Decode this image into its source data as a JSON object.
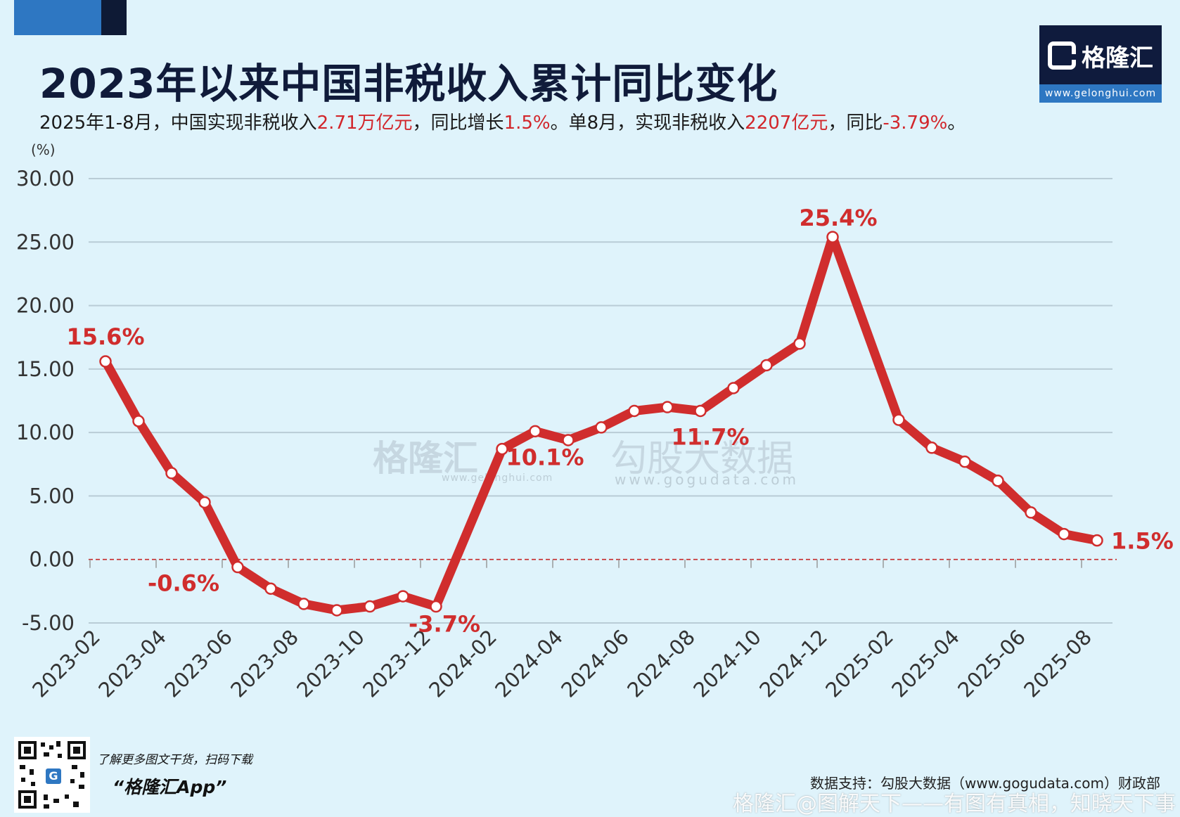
{
  "title": "2023年以来中国非税收入累计同比变化",
  "subtitle_parts": [
    {
      "text": "2025年1-8月，中国实现非税收入",
      "hl": false
    },
    {
      "text": "2.71万亿元",
      "hl": true
    },
    {
      "text": "，同比增长",
      "hl": false
    },
    {
      "text": "1.5%",
      "hl": true
    },
    {
      "text": "。单8月，实现非税收入",
      "hl": false
    },
    {
      "text": "2207亿元",
      "hl": true
    },
    {
      "text": "，同比",
      "hl": false
    },
    {
      "text": "-3.79%",
      "hl": true
    },
    {
      "text": "。",
      "hl": false
    }
  ],
  "logo": {
    "text": "格隆汇",
    "url": "www.gelonghui.com"
  },
  "promo": {
    "line1": "了解更多图文干货，扫码下载",
    "line2": "“格隆汇App”",
    "badge": "G"
  },
  "source_note": "数据支持：勾股大数据（www.gogudata.com）财政部",
  "footer_watermark": "格隆汇@图解天下——有图有真相，知晓天下事",
  "watermarks": {
    "left": "格隆汇",
    "left_url": "www.gelonghui.com",
    "right": "勾股大数据",
    "right_url": "www.gogudata.com"
  },
  "colors": {
    "line": "#d02d2d",
    "label": "#d02d2d",
    "grid": "#b9ccd6",
    "zero_line": "#c62828",
    "title": "#101b3a"
  },
  "chart_data": {
    "type": "line",
    "ylabel": "(%)",
    "ylim": [
      -5,
      30
    ],
    "yticks": [
      "30.00",
      "25.00",
      "20.00",
      "15.00",
      "10.00",
      "5.00",
      "0.00",
      "-5.00"
    ],
    "xticks": [
      "2023-02",
      "2023-04",
      "2023-06",
      "2023-08",
      "2023-10",
      "2023-12",
      "2024-02",
      "2024-04",
      "2024-06",
      "2024-08",
      "2024-10",
      "2024-12",
      "2025-02",
      "2025-04",
      "2025-06",
      "2025-08"
    ],
    "x": [
      "2023-02",
      "2023-03",
      "2023-04",
      "2023-05",
      "2023-06",
      "2023-07",
      "2023-08",
      "2023-09",
      "2023-10",
      "2023-11",
      "2023-12",
      "2024-02",
      "2024-03",
      "2024-04",
      "2024-05",
      "2024-06",
      "2024-07",
      "2024-08",
      "2024-09",
      "2024-10",
      "2024-11",
      "2024-12",
      "2025-02",
      "2025-03",
      "2025-04",
      "2025-05",
      "2025-06",
      "2025-07",
      "2025-08"
    ],
    "values": [
      15.6,
      10.9,
      6.8,
      4.5,
      -0.6,
      -2.3,
      -3.5,
      -4.0,
      -3.7,
      -2.9,
      -3.7,
      8.7,
      10.1,
      9.4,
      10.4,
      11.7,
      12.0,
      11.7,
      13.5,
      15.3,
      17.0,
      25.4,
      11.0,
      8.8,
      7.7,
      6.2,
      3.7,
      2.0,
      1.5
    ],
    "annotations": [
      {
        "x": "2023-02",
        "label": "15.6%"
      },
      {
        "x": "2023-06",
        "label": "-0.6%"
      },
      {
        "x": "2023-12",
        "label": "-3.7%"
      },
      {
        "x": "2024-03",
        "label": "10.1%"
      },
      {
        "x": "2024-08",
        "label": "11.7%"
      },
      {
        "x": "2024-12",
        "label": "25.4%"
      },
      {
        "x": "2025-08",
        "label": "1.5%"
      }
    ],
    "grid": true,
    "legend": "none"
  }
}
